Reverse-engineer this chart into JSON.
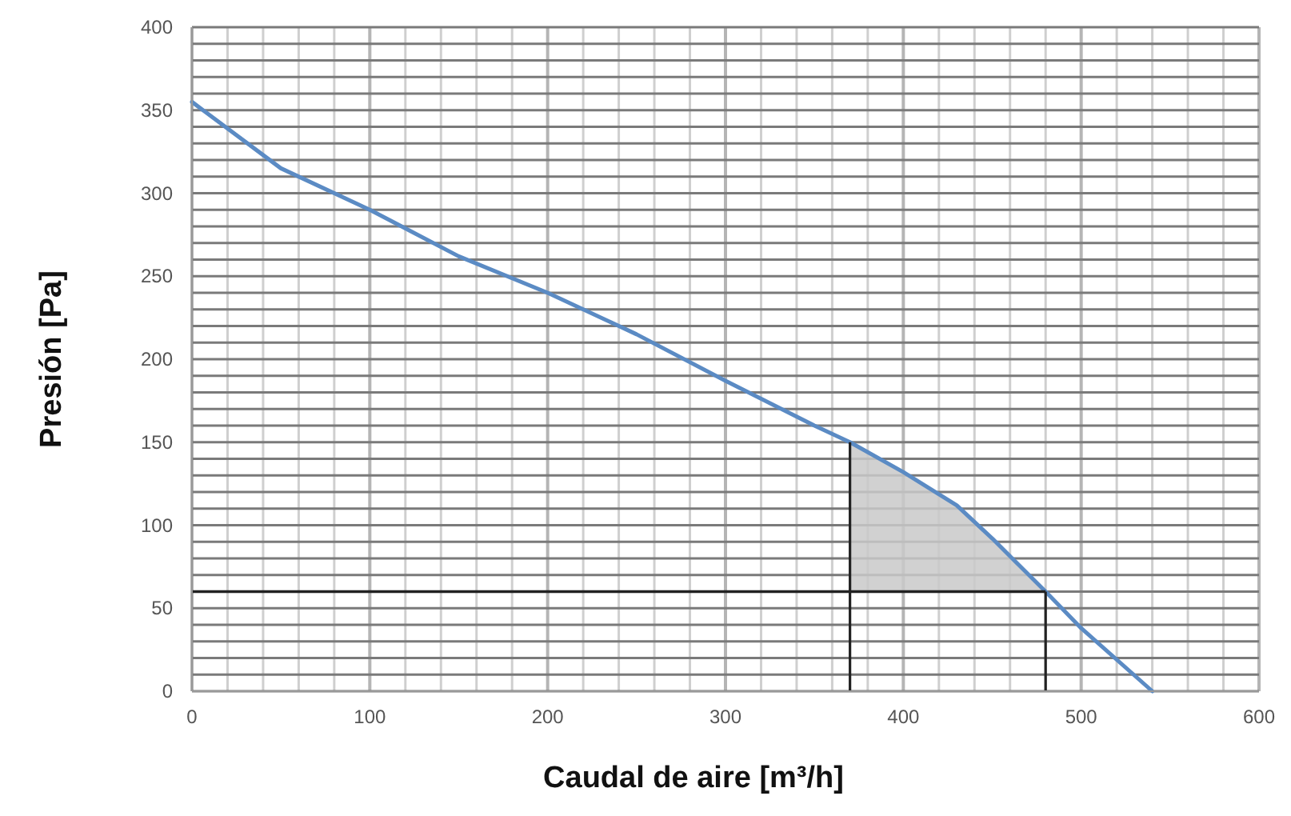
{
  "chart_data": {
    "type": "line",
    "xlabel": "Caudal de aire [m³/h]",
    "ylabel": "Presión [Pa]",
    "x": [
      0,
      50,
      100,
      150,
      200,
      250,
      300,
      350,
      370,
      400,
      430,
      450,
      480,
      500,
      540
    ],
    "series": [
      {
        "color": "#5b8bc4",
        "values": [
          355,
          315,
          290,
          262,
          240,
          215,
          187,
          160,
          150,
          132,
          112,
          92,
          60,
          38,
          0
        ],
        "lower": [
          null,
          null,
          null,
          null,
          null,
          null,
          null,
          null,
          60,
          60,
          60,
          60,
          60,
          null,
          null
        ],
        "upper": [
          null,
          null,
          null,
          null,
          null,
          null,
          null,
          null,
          150,
          132,
          112,
          92,
          60,
          null,
          null
        ]
      }
    ],
    "xlim": [
      0,
      600
    ],
    "ylim": [
      0,
      400
    ],
    "xticks": [
      0,
      {
        "value": 20,
        "label": null
      },
      {
        "value": 40,
        "label": null
      },
      {
        "value": 60,
        "label": null
      },
      {
        "value": 80,
        "label": null
      },
      100,
      {
        "value": 120,
        "label": null
      },
      {
        "value": 140,
        "label": null
      },
      {
        "value": 160,
        "label": null
      },
      {
        "value": 180,
        "label": null
      },
      200,
      {
        "value": 220,
        "label": null
      },
      {
        "value": 240,
        "label": null
      },
      {
        "value": 260,
        "label": null
      },
      {
        "value": 280,
        "label": null
      },
      300,
      {
        "value": 320,
        "label": null
      },
      {
        "value": 340,
        "label": null
      },
      {
        "value": 360,
        "label": null
      },
      {
        "value": 380,
        "label": null
      },
      400,
      {
        "value": 420,
        "label": null
      },
      {
        "value": 440,
        "label": null
      },
      {
        "value": 460,
        "label": null
      },
      {
        "value": 480,
        "label": null
      },
      500,
      {
        "value": 520,
        "label": null
      },
      {
        "value": 540,
        "label": null
      },
      {
        "value": 560,
        "label": null
      },
      {
        "value": 580,
        "label": null
      },
      600
    ],
    "yticks": [
      0,
      {
        "value": 10,
        "label": null
      },
      {
        "value": 20,
        "label": null
      },
      {
        "value": 30,
        "label": null
      },
      {
        "value": 40,
        "label": null
      },
      50,
      {
        "value": 60,
        "label": null
      },
      {
        "value": 70,
        "label": null
      },
      {
        "value": 80,
        "label": null
      },
      {
        "value": 90,
        "label": null
      },
      100,
      {
        "value": 110,
        "label": null
      },
      {
        "value": 120,
        "label": null
      },
      {
        "value": 130,
        "label": null
      },
      {
        "value": 140,
        "label": null
      },
      150,
      {
        "value": 160,
        "label": null
      },
      {
        "value": 170,
        "label": null
      },
      {
        "value": 180,
        "label": null
      },
      {
        "value": 190,
        "label": null
      },
      200,
      {
        "value": 210,
        "label": null
      },
      {
        "value": 220,
        "label": null
      },
      {
        "value": 230,
        "label": null
      },
      {
        "value": 240,
        "label": null
      },
      250,
      {
        "value": 260,
        "label": null
      },
      {
        "value": 270,
        "label": null
      },
      {
        "value": 280,
        "label": null
      },
      {
        "value": 290,
        "label": null
      },
      300,
      {
        "value": 310,
        "label": null
      },
      {
        "value": 320,
        "label": null
      },
      {
        "value": 330,
        "label": null
      },
      {
        "value": 340,
        "label": null
      },
      350,
      {
        "value": 360,
        "label": null
      },
      {
        "value": 370,
        "label": null
      },
      {
        "value": 380,
        "label": null
      },
      {
        "value": 390,
        "label": null
      },
      400
    ],
    "grid": true,
    "ref_lines": [
      {
        "axis": "x",
        "value": 370,
        "color": "#222222"
      },
      {
        "axis": "x",
        "value": 480,
        "color": "#222222"
      },
      {
        "axis": "y",
        "value": 60,
        "color": "#222222"
      }
    ]
  }
}
